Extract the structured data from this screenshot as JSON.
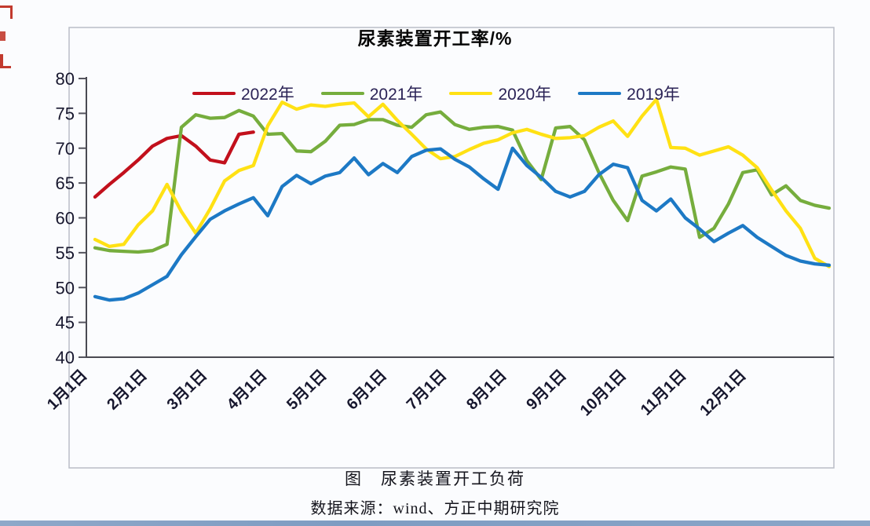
{
  "chart": {
    "caption_line1": "图　尿素装置开工负荷",
    "caption_line2": "数据来源：wind、方正中期研究院"
  },
  "page": {
    "edge_mark_color": "#c23a2e",
    "bottom_strip_color": "#7e9cc2"
  },
  "chart_data": {
    "type": "line",
    "title": "尿素装置开工率/%",
    "xlabel": "",
    "ylabel": "",
    "ylim": [
      40,
      80
    ],
    "y_ticks": [
      40,
      45,
      50,
      55,
      60,
      65,
      70,
      75,
      80
    ],
    "x_tick_labels": [
      "1月1日",
      "2月1日",
      "3月1日",
      "4月1日",
      "5月1日",
      "6月1日",
      "7月1日",
      "8月1日",
      "9月1日",
      "10月1日",
      "11月1日",
      "12月1日"
    ],
    "grid": false,
    "legend_position": "top",
    "x_unit": "week",
    "points_per_year": 52,
    "series": [
      {
        "name": "2022年",
        "color": "#c2101c",
        "values": [
          63.0,
          64.8,
          66.5,
          68.3,
          70.3,
          71.4,
          71.8,
          70.3,
          68.3,
          67.9,
          72.0,
          72.3
        ]
      },
      {
        "name": "2021年",
        "color": "#76ad3d",
        "values": [
          55.7,
          55.3,
          55.2,
          55.1,
          55.3,
          56.2,
          73.0,
          74.8,
          74.3,
          74.4,
          75.4,
          74.6,
          72.0,
          72.1,
          69.6,
          69.5,
          71.0,
          73.3,
          73.4,
          74.1,
          74.1,
          73.3,
          73.0,
          74.8,
          75.2,
          73.4,
          72.7,
          73.0,
          73.1,
          72.6,
          68.2,
          65.5,
          72.9,
          73.1,
          71.2,
          66.5,
          62.5,
          59.6,
          66.0,
          66.6,
          67.3,
          67.0,
          57.2,
          58.5,
          62.0,
          66.5,
          66.9,
          63.3,
          64.6,
          62.5,
          61.8,
          61.4
        ]
      },
      {
        "name": "2020年",
        "color": "#ffe114",
        "values": [
          56.9,
          55.9,
          56.2,
          59.0,
          61.0,
          64.8,
          60.9,
          57.8,
          61.3,
          65.3,
          66.8,
          67.5,
          73.2,
          76.6,
          75.6,
          76.2,
          76.0,
          76.3,
          76.5,
          74.5,
          76.3,
          74.0,
          72.0,
          69.9,
          68.5,
          68.8,
          69.8,
          70.7,
          71.2,
          72.2,
          72.7,
          72.0,
          71.4,
          71.5,
          71.8,
          73.0,
          73.9,
          71.7,
          74.6,
          77.0,
          70.1,
          70.0,
          69.0,
          69.6,
          70.2,
          69.0,
          67.2,
          64.0,
          61.0,
          58.5,
          54.2,
          53.0
        ]
      },
      {
        "name": "2019年",
        "color": "#1d79c5",
        "values": [
          48.7,
          48.2,
          48.4,
          49.2,
          50.4,
          51.6,
          54.7,
          57.3,
          59.8,
          61.0,
          62.0,
          62.9,
          60.3,
          64.5,
          66.1,
          64.9,
          66.0,
          66.5,
          68.6,
          66.2,
          67.8,
          66.5,
          68.8,
          69.7,
          69.9,
          68.4,
          67.3,
          65.6,
          64.1,
          70.0,
          67.5,
          65.8,
          63.8,
          63.0,
          63.8,
          66.2,
          67.7,
          67.2,
          62.5,
          61.0,
          62.7,
          60.0,
          58.4,
          56.6,
          57.8,
          58.9,
          57.2,
          55.9,
          54.6,
          53.8,
          53.4,
          53.2
        ]
      }
    ]
  }
}
